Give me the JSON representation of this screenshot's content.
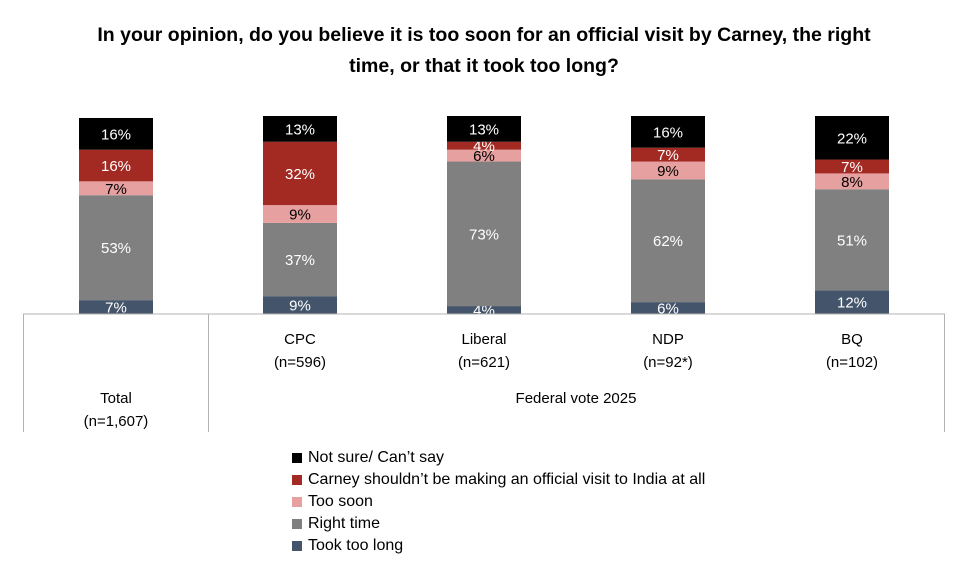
{
  "chart_data": {
    "type": "bar",
    "stacked": true,
    "title": "In your opinion, do you believe it is too soon for an official visit by Carney, the right time, or that it took too long?",
    "categories": [
      "Total",
      "CPC",
      "Liberal",
      "NDP",
      "BQ"
    ],
    "category_n": [
      "(n=1,607)",
      "(n=596)",
      "(n=621)",
      "(n=92*)",
      "(n=102)"
    ],
    "group_label": "Federal vote 2025",
    "series": [
      {
        "name": "Took too long",
        "color": "#44546A",
        "values": [
          7,
          9,
          4,
          6,
          12
        ],
        "labels": [
          "7%",
          "9%",
          "4%",
          "6%",
          "12%"
        ]
      },
      {
        "name": "Right time",
        "color": "#808080",
        "values": [
          53,
          37,
          73,
          62,
          51
        ],
        "labels": [
          "53%",
          "37%",
          "73%",
          "62%",
          "51%"
        ]
      },
      {
        "name": "Too soon",
        "color": "#E6A0A0",
        "values": [
          7,
          9,
          6,
          9,
          8
        ],
        "labels": [
          "7%",
          "9%",
          "6%",
          "9%",
          "8%"
        ]
      },
      {
        "name": "Carney shouldn’t be making an official visit to India at all",
        "color": "#A32A22",
        "values": [
          16,
          32,
          4,
          7,
          7
        ],
        "labels": [
          "16%",
          "32%",
          "4%",
          "7%",
          "7%"
        ]
      },
      {
        "name": "Not sure/ Can’t say",
        "color": "#000000",
        "values": [
          16,
          13,
          13,
          16,
          22
        ],
        "labels": [
          "16%",
          "13%",
          "13%",
          "16%",
          "22%"
        ]
      }
    ],
    "ylim": [
      0,
      100
    ],
    "grid": false,
    "legend_position": "bottom",
    "legend_order": [
      "Not sure/ Can’t say",
      "Carney shouldn’t be making an official visit to India at all",
      "Too soon",
      "Right time",
      "Took too long"
    ]
  }
}
